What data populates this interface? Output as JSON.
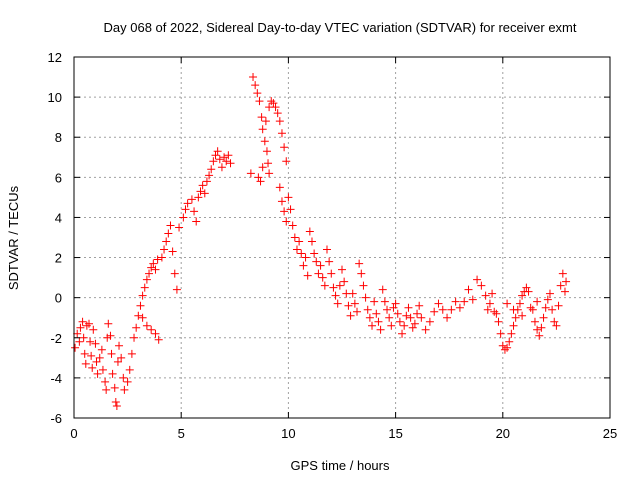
{
  "chart_data": {
    "type": "scatter",
    "title": "Day 068 of 2022, Sidereal Day-to-day VTEC variation (SDTVAR) for receiver exmt",
    "xlabel": "GPS time / hours",
    "ylabel": "SDTVAR / TECUs",
    "xlim": [
      0,
      25
    ],
    "ylim": [
      -6,
      12
    ],
    "xticks": [
      0,
      5,
      10,
      15,
      20,
      25
    ],
    "yticks": [
      -6,
      -4,
      -2,
      0,
      2,
      4,
      6,
      8,
      10,
      12
    ],
    "xtick_labels": [
      "0",
      "5",
      "10",
      "15",
      "20",
      "25"
    ],
    "ytick_labels": [
      "-6",
      "-4",
      "-2",
      "0",
      "2",
      "4",
      "6",
      "8",
      "10",
      "12"
    ],
    "grid": true,
    "marker": "+",
    "color": "#ff0000",
    "series": [
      {
        "name": "SDTVAR",
        "points": [
          [
            0.05,
            -2.5
          ],
          [
            0.15,
            -1.8
          ],
          [
            0.25,
            -2.2
          ],
          [
            0.3,
            -1.5
          ],
          [
            0.4,
            -1.2
          ],
          [
            0.45,
            -2.0
          ],
          [
            0.5,
            -2.8
          ],
          [
            0.55,
            -3.3
          ],
          [
            0.6,
            -1.4
          ],
          [
            0.7,
            -1.3
          ],
          [
            0.75,
            -2.2
          ],
          [
            0.8,
            -2.9
          ],
          [
            0.85,
            -3.5
          ],
          [
            0.9,
            -1.6
          ],
          [
            1.0,
            -2.3
          ],
          [
            1.05,
            -3.2
          ],
          [
            1.1,
            -3.8
          ],
          [
            1.2,
            -3.0
          ],
          [
            1.3,
            -2.6
          ],
          [
            1.35,
            -3.6
          ],
          [
            1.45,
            -4.2
          ],
          [
            1.5,
            -4.6
          ],
          [
            1.55,
            -2.0
          ],
          [
            1.6,
            -1.3
          ],
          [
            1.7,
            -1.9
          ],
          [
            1.75,
            -2.8
          ],
          [
            1.8,
            -3.8
          ],
          [
            1.9,
            -4.5
          ],
          [
            1.95,
            -5.2
          ],
          [
            2.0,
            -5.4
          ],
          [
            2.05,
            -3.2
          ],
          [
            2.1,
            -2.4
          ],
          [
            2.2,
            -3.0
          ],
          [
            2.3,
            -4.0
          ],
          [
            2.35,
            -4.6
          ],
          [
            2.5,
            -4.2
          ],
          [
            2.6,
            -3.6
          ],
          [
            2.7,
            -2.8
          ],
          [
            2.8,
            -2.0
          ],
          [
            2.9,
            -1.5
          ],
          [
            3.0,
            -0.9
          ],
          [
            3.1,
            -0.4
          ],
          [
            3.2,
            0.1
          ],
          [
            3.3,
            0.5
          ],
          [
            3.4,
            0.9
          ],
          [
            3.5,
            1.2
          ],
          [
            3.6,
            1.5
          ],
          [
            3.7,
            1.7
          ],
          [
            3.8,
            1.4
          ],
          [
            3.9,
            1.9
          ],
          [
            3.2,
            -1.0
          ],
          [
            3.4,
            -1.4
          ],
          [
            3.6,
            -1.6
          ],
          [
            3.8,
            -1.8
          ],
          [
            3.95,
            -2.1
          ],
          [
            4.1,
            2.0
          ],
          [
            4.2,
            2.4
          ],
          [
            4.3,
            2.8
          ],
          [
            4.4,
            3.2
          ],
          [
            4.5,
            3.6
          ],
          [
            4.6,
            2.3
          ],
          [
            4.7,
            1.2
          ],
          [
            4.8,
            0.4
          ],
          [
            4.9,
            3.5
          ],
          [
            5.1,
            4.0
          ],
          [
            5.2,
            4.4
          ],
          [
            5.3,
            4.7
          ],
          [
            5.5,
            4.9
          ],
          [
            5.6,
            4.3
          ],
          [
            5.7,
            3.8
          ],
          [
            5.8,
            5.0
          ],
          [
            5.9,
            5.3
          ],
          [
            6.0,
            5.6
          ],
          [
            6.1,
            5.2
          ],
          [
            6.2,
            5.8
          ],
          [
            6.3,
            6.1
          ],
          [
            6.4,
            6.4
          ],
          [
            6.5,
            6.8
          ],
          [
            6.6,
            7.1
          ],
          [
            6.7,
            7.3
          ],
          [
            6.8,
            6.9
          ],
          [
            6.9,
            6.5
          ],
          [
            7.0,
            7.0
          ],
          [
            7.1,
            6.8
          ],
          [
            7.2,
            7.1
          ],
          [
            7.3,
            6.7
          ],
          [
            8.25,
            6.2
          ],
          [
            8.35,
            11.0
          ],
          [
            8.45,
            10.6
          ],
          [
            8.55,
            10.2
          ],
          [
            8.65,
            9.8
          ],
          [
            8.75,
            9.0
          ],
          [
            8.8,
            8.4
          ],
          [
            8.9,
            7.8
          ],
          [
            9.0,
            7.3
          ],
          [
            9.05,
            6.7
          ],
          [
            9.1,
            6.2
          ],
          [
            8.6,
            6.0
          ],
          [
            8.7,
            5.8
          ],
          [
            8.8,
            6.5
          ],
          [
            8.95,
            8.8
          ],
          [
            9.1,
            9.5
          ],
          [
            9.2,
            9.8
          ],
          [
            9.3,
            9.7
          ],
          [
            9.4,
            9.5
          ],
          [
            9.5,
            9.2
          ],
          [
            9.6,
            8.8
          ],
          [
            9.7,
            8.2
          ],
          [
            9.8,
            7.5
          ],
          [
            9.9,
            6.8
          ],
          [
            9.6,
            5.5
          ],
          [
            9.7,
            4.8
          ],
          [
            9.8,
            4.3
          ],
          [
            9.9,
            3.8
          ],
          [
            10.0,
            5.0
          ],
          [
            10.1,
            4.4
          ],
          [
            10.2,
            3.6
          ],
          [
            10.3,
            3.0
          ],
          [
            10.4,
            2.4
          ],
          [
            10.5,
            2.8
          ],
          [
            10.6,
            2.2
          ],
          [
            10.7,
            1.6
          ],
          [
            10.8,
            2.0
          ],
          [
            10.9,
            1.1
          ],
          [
            11.0,
            3.3
          ],
          [
            11.1,
            2.8
          ],
          [
            11.2,
            2.2
          ],
          [
            11.3,
            1.8
          ],
          [
            11.4,
            1.2
          ],
          [
            11.5,
            1.6
          ],
          [
            11.6,
            1.0
          ],
          [
            11.7,
            0.6
          ],
          [
            11.8,
            2.4
          ],
          [
            11.9,
            1.8
          ],
          [
            12.0,
            1.2
          ],
          [
            12.1,
            0.5
          ],
          [
            12.2,
            0.1
          ],
          [
            12.3,
            -0.3
          ],
          [
            12.4,
            0.6
          ],
          [
            12.5,
            1.4
          ],
          [
            12.6,
            0.8
          ],
          [
            12.7,
            0.2
          ],
          [
            12.8,
            -0.4
          ],
          [
            12.9,
            -0.9
          ],
          [
            13.0,
            0.2
          ],
          [
            13.1,
            -0.3
          ],
          [
            13.2,
            -0.7
          ],
          [
            13.3,
            1.7
          ],
          [
            13.4,
            1.2
          ],
          [
            13.5,
            0.6
          ],
          [
            13.6,
            0.0
          ],
          [
            13.7,
            -0.6
          ],
          [
            13.8,
            -1.0
          ],
          [
            13.9,
            -1.4
          ],
          [
            14.0,
            -0.2
          ],
          [
            14.1,
            -0.8
          ],
          [
            14.2,
            -1.2
          ],
          [
            14.3,
            -1.6
          ],
          [
            14.4,
            0.4
          ],
          [
            14.5,
            -0.2
          ],
          [
            14.6,
            -0.6
          ],
          [
            14.7,
            -1.0
          ],
          [
            14.8,
            -1.4
          ],
          [
            14.9,
            -0.5
          ],
          [
            15.0,
            -0.3
          ],
          [
            15.1,
            -0.8
          ],
          [
            15.2,
            -1.2
          ],
          [
            15.3,
            -1.8
          ],
          [
            15.4,
            -1.4
          ],
          [
            15.5,
            -0.9
          ],
          [
            15.6,
            -0.5
          ],
          [
            15.7,
            -1.0
          ],
          [
            15.8,
            -1.5
          ],
          [
            15.9,
            -1.3
          ],
          [
            16.0,
            -0.8
          ],
          [
            16.1,
            -0.4
          ],
          [
            16.2,
            -1.0
          ],
          [
            16.4,
            -1.6
          ],
          [
            16.6,
            -1.2
          ],
          [
            16.8,
            -0.7
          ],
          [
            17.0,
            -0.3
          ],
          [
            17.2,
            -0.6
          ],
          [
            17.4,
            -1.0
          ],
          [
            17.6,
            -0.6
          ],
          [
            17.8,
            -0.2
          ],
          [
            18.0,
            -0.5
          ],
          [
            18.2,
            -0.2
          ],
          [
            18.4,
            0.4
          ],
          [
            18.6,
            -0.1
          ],
          [
            18.8,
            0.9
          ],
          [
            19.0,
            0.6
          ],
          [
            19.2,
            0.1
          ],
          [
            19.4,
            -0.3
          ],
          [
            19.6,
            -0.7
          ],
          [
            19.8,
            -1.2
          ],
          [
            19.9,
            -1.8
          ],
          [
            20.0,
            -2.4
          ],
          [
            20.1,
            -2.6
          ],
          [
            20.2,
            -2.5
          ],
          [
            20.3,
            -2.2
          ],
          [
            20.4,
            -1.8
          ],
          [
            20.5,
            -1.4
          ],
          [
            20.6,
            -1.0
          ],
          [
            20.7,
            -0.6
          ],
          [
            20.8,
            -0.3
          ],
          [
            20.9,
            0.1
          ],
          [
            21.0,
            0.3
          ],
          [
            21.1,
            0.5
          ],
          [
            21.2,
            0.3
          ],
          [
            21.4,
            -0.6
          ],
          [
            21.5,
            -1.2
          ],
          [
            21.6,
            -1.6
          ],
          [
            21.7,
            -1.9
          ],
          [
            21.8,
            -1.5
          ],
          [
            21.9,
            -1.0
          ],
          [
            22.0,
            -0.5
          ],
          [
            22.1,
            -0.1
          ],
          [
            22.2,
            0.2
          ],
          [
            22.3,
            -0.6
          ],
          [
            22.4,
            -1.2
          ],
          [
            22.5,
            -1.4
          ],
          [
            22.6,
            -0.4
          ],
          [
            22.7,
            0.6
          ],
          [
            22.8,
            1.2
          ],
          [
            22.9,
            0.3
          ],
          [
            22.95,
            0.8
          ],
          [
            19.3,
            -0.6
          ],
          [
            19.7,
            -0.8
          ],
          [
            20.5,
            -0.6
          ],
          [
            21.3,
            -0.5
          ],
          [
            20.9,
            -0.9
          ],
          [
            21.6,
            -0.2
          ],
          [
            19.5,
            0.2
          ],
          [
            20.2,
            -0.3
          ]
        ]
      }
    ]
  }
}
